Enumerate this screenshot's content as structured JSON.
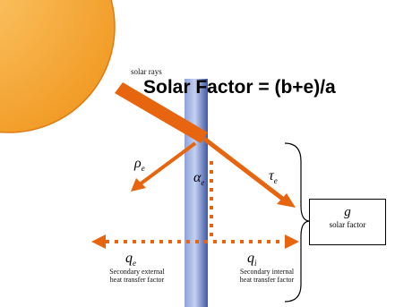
{
  "title": "Solar Factor = (b+e)/a",
  "labels": {
    "solar_rays": "solar rays",
    "rho": "ρ",
    "rho_sub": "e",
    "alpha": "α",
    "alpha_sub": "e",
    "tau": "τ",
    "tau_sub": "e",
    "q_left": "q",
    "q_left_sub": "e",
    "q_right": "q",
    "q_right_sub": "i",
    "secondary_external": "Secondary external heat transfer factor",
    "secondary_internal": "Secondary internal heat transfer factor",
    "g_symbol": "g",
    "g_label": "solar factor"
  },
  "colors": {
    "sun": "#f5a623",
    "sun_edge": "#e07b12",
    "ray": "#e8650f",
    "glass_dark": "#3f5aa8",
    "glass_light": "#b9c6ea"
  }
}
